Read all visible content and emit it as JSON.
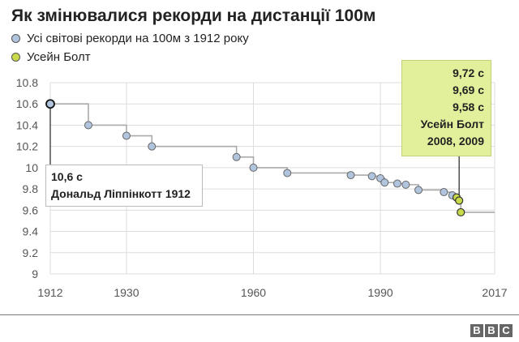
{
  "title": "Як змінювалися рекорди на дистанції 100м",
  "legend": [
    {
      "label": "Усі світові рекорди на 100м з 1912 року",
      "color": "#b0c4de"
    },
    {
      "label": "Усейн Болт",
      "color": "#c8d94a"
    }
  ],
  "annotations": {
    "left": {
      "line1": "10,6 с",
      "line2": "Дональд Ліппінкотт 1912"
    },
    "right": {
      "lines": [
        "9,72 с",
        "9,69 с",
        "9,58 с",
        "Усейн Болт",
        "2008, 2009"
      ]
    }
  },
  "colors": {
    "record": "#b0c4de",
    "bolt": "#c8d94a",
    "step_line": "#aaaaaa",
    "grid": "#dddddd"
  },
  "branding": {
    "letters": [
      "B",
      "B",
      "C"
    ]
  },
  "chart_data": {
    "type": "line",
    "title": "Як змінювалися рекорди на дистанції 100м",
    "xlabel": "",
    "ylabel": "",
    "xlim": [
      1912,
      2017
    ],
    "ylim": [
      9,
      10.8
    ],
    "x_ticks": [
      "1912",
      "1930",
      "1960",
      "1990",
      "2017"
    ],
    "y_ticks": [
      "10.8",
      "10.6",
      "10.4",
      "10.2",
      "10",
      "9.8",
      "9.6",
      "9.4",
      "9.2",
      "9"
    ],
    "grid": true,
    "legend_position": "top-left",
    "series": [
      {
        "name": "Усі світові рекорди на 100м з 1912 року",
        "points": [
          [
            1912,
            10.6
          ],
          [
            1921,
            10.4
          ],
          [
            1930,
            10.3
          ],
          [
            1936,
            10.2
          ],
          [
            1956,
            10.1
          ],
          [
            1960,
            10.0
          ],
          [
            1968,
            9.95
          ],
          [
            1983,
            9.93
          ],
          [
            1988,
            9.92
          ],
          [
            1990,
            9.9
          ],
          [
            1991,
            9.86
          ],
          [
            1994,
            9.85
          ],
          [
            1996,
            9.84
          ],
          [
            1999,
            9.79
          ],
          [
            2005,
            9.77
          ],
          [
            2007,
            9.74
          ]
        ]
      },
      {
        "name": "Усейн Болт",
        "points": [
          [
            2008,
            9.72
          ],
          [
            2008.6,
            9.69
          ],
          [
            2009,
            9.58
          ]
        ]
      }
    ]
  }
}
